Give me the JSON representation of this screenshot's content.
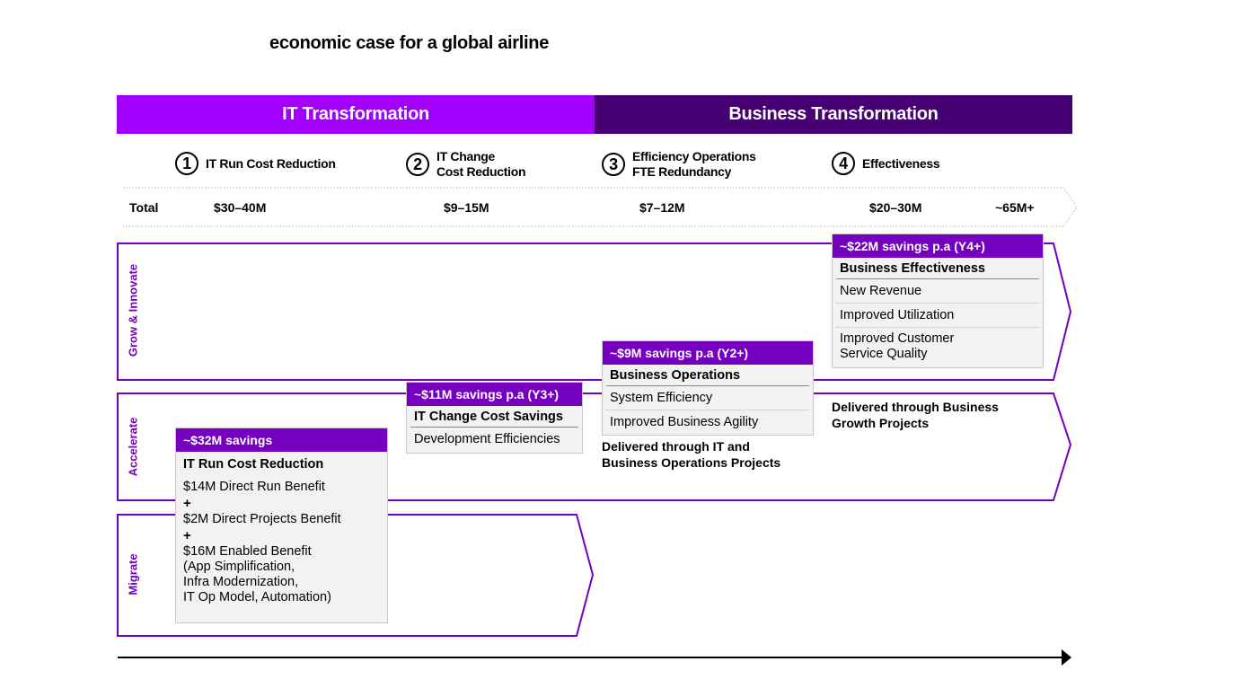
{
  "title": "economic case for a global airline",
  "headers": {
    "it": "IT Transformation",
    "bt": "Business Transformation"
  },
  "steps": [
    {
      "num": "1",
      "line1": "IT Run Cost Reduction",
      "line2": ""
    },
    {
      "num": "2",
      "line1": "IT Change",
      "line2": "Cost Reduction"
    },
    {
      "num": "3",
      "line1": "Efficiency Operations",
      "line2": "FTE Redundancy"
    },
    {
      "num": "4",
      "line1": "Effectiveness",
      "line2": ""
    }
  ],
  "totals": {
    "label": "Total",
    "values": [
      "$30–40M",
      "$9–15M",
      "$7–12M",
      "$20–30M",
      "~65M+"
    ]
  },
  "lanes": {
    "grow": "Grow & Innovate",
    "accelerate": "Accelerate",
    "migrate": "Migrate"
  },
  "cards": {
    "run": {
      "header": "~$32M savings",
      "title": "IT Run Cost Reduction",
      "line1": "$14M Direct Run Benefit",
      "plus": "+",
      "line2": "$2M Direct Projects Benefit",
      "line3": "$16M Enabled Benefit",
      "line4": "(App Simplification,",
      "line5": "Infra Modernization,",
      "line6": "IT Op Model, Automation)"
    },
    "change": {
      "header": "~$11M savings p.a (Y3+)",
      "title": "IT Change Cost Savings",
      "rows": [
        "Development Efficiencies"
      ]
    },
    "ops": {
      "header": "~$9M savings p.a (Y2+)",
      "title": "Business Operations",
      "rows": [
        "System Efficiency",
        "Improved Business Agility"
      ]
    },
    "eff": {
      "header": "~$22M savings p.a (Y4+)",
      "title": "Business Effectiveness",
      "rows": [
        "New Revenue",
        "Improved Utilization"
      ],
      "row3a": "Improved Customer",
      "row3b": "Service Quality"
    }
  },
  "delivered": {
    "ops1": "Delivered through IT and",
    "ops2": "Business Operations Projects",
    "growth1": "Delivered through Business",
    "growth2": "Growth Projects"
  },
  "colors": {
    "purple": "#a100ff",
    "dark_purple": "#460073",
    "mid_purple": "#7500c0"
  }
}
